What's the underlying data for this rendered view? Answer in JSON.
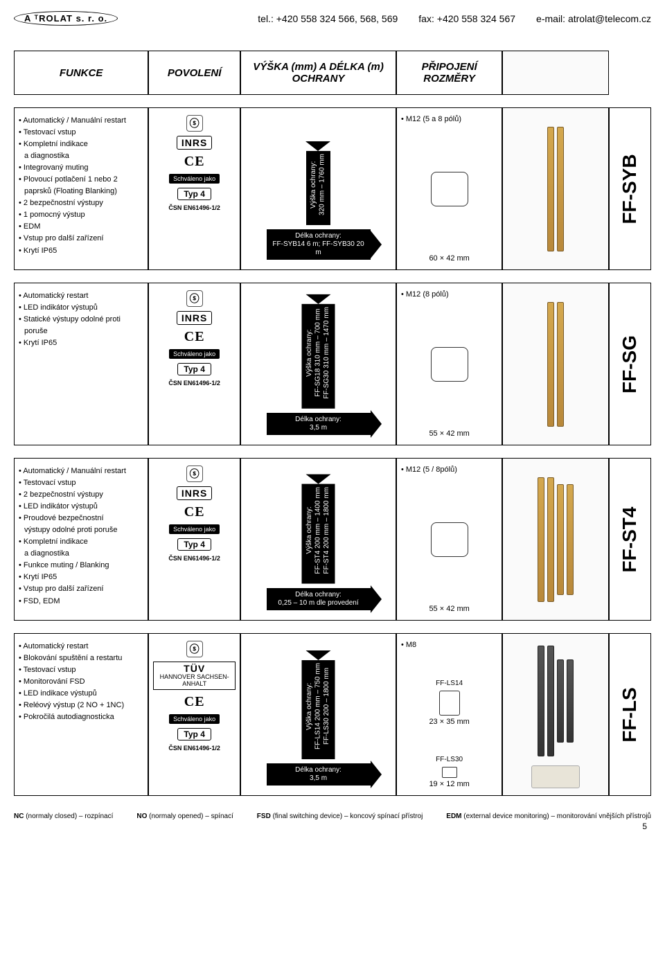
{
  "header": {
    "logo_text": "A ᵀROLAT s. r. o.",
    "tel_label": "tel.:",
    "tel_value": "+420 558 324 566, 568, 569",
    "fax_label": "fax:",
    "fax_value": "+420 558 324 567",
    "email_label": "e-mail:",
    "email_value": "atrolat@telecom.cz"
  },
  "columns": {
    "funkce": "FUNKCE",
    "povoleni": "POVOLENÍ",
    "vyska": "VÝŠKA (mm) A DÉLKA (m) OCHRANY",
    "rozmery": "PŘIPOJENÍ ROZMĚRY"
  },
  "approvals": {
    "csa": "C SA US",
    "inrs": "INRS",
    "ce": "CE",
    "schvaleno": "Schváleno jako",
    "typ": "Typ 4",
    "csn": "ČSN EN61496-1/2",
    "tuv_big": "TÜV",
    "tuv_small": "HANNOVER SACHSEN-ANHALT"
  },
  "rows": [
    {
      "series": "FF-SYB",
      "features": [
        "Automatický / Manuální restart",
        "Testovací vstup",
        "Kompletní indikace",
        "  a diagnostika",
        "Integrovaný muting",
        "Plovoucí potlačení 1 nebo 2",
        "  paprsků (Floating Blanking)",
        "2 bezpečnostní výstupy",
        "1 pomocný výstup",
        "EDM",
        "Vstup pro další zařízení",
        "Krytí IP65"
      ],
      "height_label": "Výška ochrany:",
      "height_range": "320 mm – 1760 mm",
      "length_label": "Délka ochrany:",
      "length_range": "FF-SYB14 6 m; FF-SYB30 20 m",
      "connector": "M12 (5 a 8 pólů)",
      "dims": "60 × 42 mm",
      "approvals": [
        "csa",
        "inrs",
        "ce"
      ],
      "tuv": false
    },
    {
      "series": "FF-SG",
      "features": [
        "Automatický restart",
        "LED indikátor výstupů",
        "Statické výstupy odolné proti",
        "  poruše",
        "Krytí IP65"
      ],
      "height_label": "Výška ochrany:",
      "height_range": "FF-SG18 310 mm – 700 mm\nFF-SG30 310 mm – 1470 mm",
      "length_label": "Délka ochrany:",
      "length_range": "3,5 m",
      "connector": "M12 (8 pólů)",
      "dims": "55 × 42 mm",
      "approvals": [
        "csa",
        "inrs",
        "ce"
      ],
      "tuv": false
    },
    {
      "series": "FF-ST4",
      "features": [
        "Automatický / Manuální restart",
        "Testovací vstup",
        "2 bezpečnostní výstupy",
        "LED indikátor výstupů",
        "Proudové bezpečnostní",
        "  výstupy odolné proti poruše",
        "Kompletní indikace",
        "  a diagnostika",
        "Funkce muting / Blanking",
        "Krytí IP65",
        "Vstup pro další zařízení",
        "FSD, EDM"
      ],
      "height_label": "Výška ochrany:",
      "height_range": "FF-ST4  200 mm – 1400 mm\nFF-ST4  200 mm – 1800 mm",
      "length_label": "Délka ochrany:",
      "length_range": "0,25 – 10 m dle provedení",
      "connector": "M12 (5 / 8pólů)",
      "dims": "55 × 42 mm",
      "approvals": [
        "csa",
        "inrs",
        "ce"
      ],
      "tuv": false
    },
    {
      "series": "FF-LS",
      "features": [
        "Automatický restart",
        "Blokování spuštění a restartu",
        "Testovací vstup",
        "Monitorování FSD",
        "LED indikace výstupů",
        "Reléový výstup (2 NO + 1NC)",
        "Pokročilá autodiagnosticka"
      ],
      "height_label": "Výška ochrany:",
      "height_range": "FF-LS14 200 mm – 750 mm\nFF-LS30 200 – 1800 mm",
      "length_label": "Délka ochrany:",
      "length_range": "3,5  m",
      "connector": "M8",
      "multi": [
        {
          "name": "FF-LS14",
          "dims": "23 × 35 mm"
        },
        {
          "name": "FF-LS30",
          "dims": "19 × 12 mm"
        }
      ],
      "approvals": [
        "csa",
        "tuv",
        "ce"
      ],
      "tuv": true
    }
  ],
  "footer": {
    "nc": "NC (normaly closed) – rozpínací",
    "no": "NO (normaly opened) – spínací",
    "fsd": "FSD (final switching device) – koncový spínací přístroj",
    "edm": "EDM (external device monitoring) – monitorování vnějších přístrojů",
    "page": "5"
  },
  "colors": {
    "text": "#000000",
    "bg": "#ffffff",
    "arrow": "#000000",
    "curtain_gold": "#d4a84e",
    "curtain_dark": "#444444"
  }
}
